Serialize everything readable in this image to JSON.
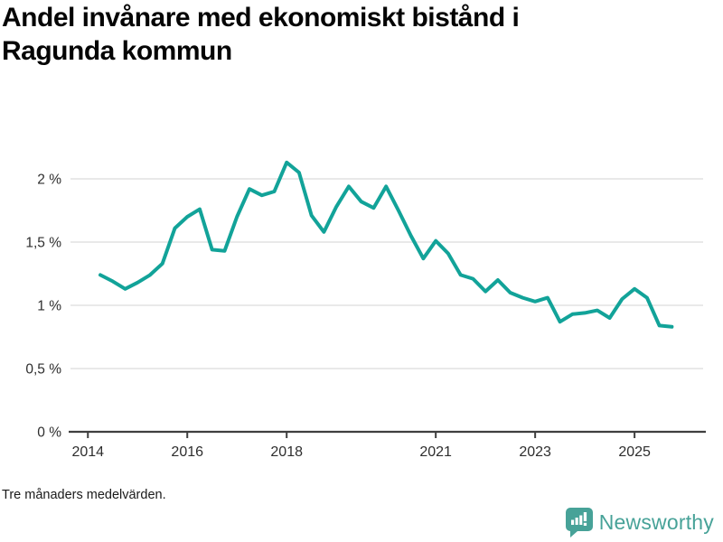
{
  "page": {
    "title_lines": [
      "Andel invånare med ekonomiskt bistånd i",
      "Ragunda kommun"
    ],
    "footer_note": "Tre månaders medelvärden.",
    "logo_text": "Newsworthy"
  },
  "colors": {
    "line": "#12A399",
    "grid": "#dcdcdc",
    "axis": "#3f3f3f",
    "tick_label": "#2e2e2e",
    "logo_teal": "#47A298"
  },
  "chart_data": {
    "type": "line",
    "title": "Andel invånare med ekonomiskt bistånd i Ragunda kommun",
    "subtitle_note": "Tre månaders medelvärden.",
    "series_name": "Andel invånare med ekonomiskt bistånd (%)",
    "x": [
      "2014-04",
      "2014-07",
      "2014-10",
      "2015-01",
      "2015-04",
      "2015-07",
      "2015-10",
      "2016-01",
      "2016-04",
      "2016-07",
      "2016-10",
      "2017-01",
      "2017-04",
      "2017-07",
      "2017-10",
      "2018-01",
      "2018-04",
      "2018-07",
      "2018-10",
      "2019-01",
      "2019-04",
      "2019-07",
      "2019-10",
      "2020-01",
      "2020-04",
      "2020-07",
      "2020-10",
      "2021-01",
      "2021-04",
      "2021-07",
      "2021-10",
      "2022-01",
      "2022-04",
      "2022-07",
      "2022-10",
      "2023-01",
      "2023-04",
      "2023-07",
      "2023-10",
      "2024-01",
      "2024-04",
      "2024-07",
      "2024-10",
      "2025-01",
      "2025-04",
      "2025-07",
      "2025-10"
    ],
    "y": [
      1.24,
      1.19,
      1.13,
      1.18,
      1.24,
      1.33,
      1.61,
      1.7,
      1.76,
      1.44,
      1.43,
      1.7,
      1.92,
      1.87,
      1.9,
      2.13,
      2.05,
      1.71,
      1.58,
      1.78,
      1.94,
      1.82,
      1.77,
      1.94,
      1.75,
      1.55,
      1.37,
      1.51,
      1.41,
      1.24,
      1.21,
      1.11,
      1.2,
      1.1,
      1.06,
      1.03,
      1.06,
      0.87,
      0.93,
      0.94,
      0.96,
      0.9,
      1.05,
      1.13,
      1.06,
      0.84,
      0.83
    ],
    "y_ticks": [
      {
        "value": 0,
        "label": "0 %"
      },
      {
        "value": 0.5,
        "label": "0,5 %"
      },
      {
        "value": 1,
        "label": "1 %"
      },
      {
        "value": 1.5,
        "label": "1,5 %"
      },
      {
        "value": 2,
        "label": "2 %"
      }
    ],
    "x_ticks": [
      {
        "year": 2014,
        "label": "2014"
      },
      {
        "year": 2016,
        "label": "2016"
      },
      {
        "year": 2018,
        "label": "2018"
      },
      {
        "year": 2021,
        "label": "2021"
      },
      {
        "year": 2023,
        "label": "2023"
      },
      {
        "year": 2025,
        "label": "2025"
      }
    ],
    "xlim": [
      2013.65,
      2026.38
    ],
    "ylim": [
      0,
      2.27
    ],
    "grid": "horizontal-only",
    "legend": "none"
  }
}
